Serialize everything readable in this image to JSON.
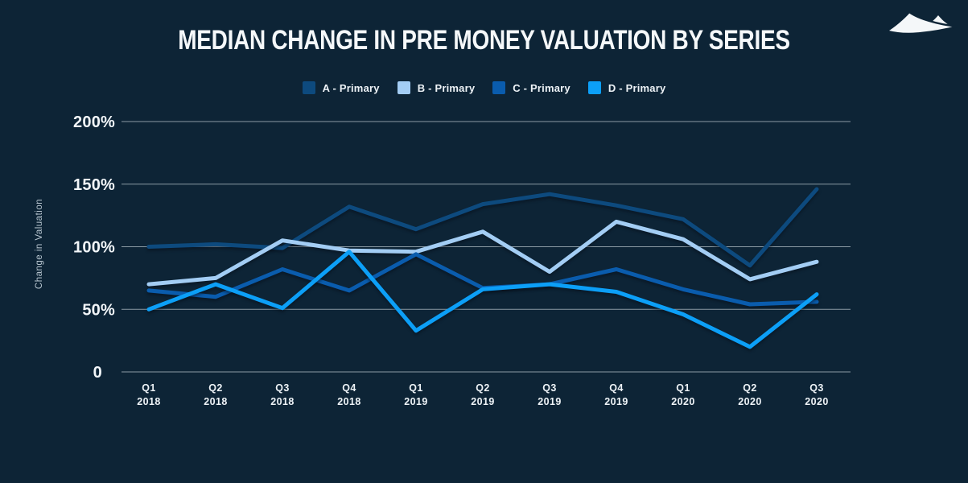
{
  "header": {
    "title": "MEDIAN CHANGE IN PRE MONEY VALUATION BY SERIES",
    "logo_icon": "mountain-dunes-icon"
  },
  "colors": {
    "background": "#0d2436",
    "gridline": "#dfe9ef",
    "title_text": "#f5f8fa",
    "tick_text": "#f2f6f9",
    "axis_title_text": "#b9c7d1",
    "logo": "#f4f7f9"
  },
  "chart_data": {
    "type": "line",
    "title": "MEDIAN CHANGE IN PRE MONEY VALUATION BY SERIES",
    "xlabel": "",
    "ylabel": "Change in Valuation",
    "categories": [
      "Q1 2018",
      "Q2 2018",
      "Q3 2018",
      "Q4 2018",
      "Q1 2019",
      "Q2 2019",
      "Q3 2019",
      "Q4 2019",
      "Q1 2020",
      "Q2 2020",
      "Q3 2020"
    ],
    "series": [
      {
        "name": "A - Primary",
        "color": "#0d4a7e",
        "values": [
          100,
          102,
          99,
          132,
          114,
          134,
          142,
          133,
          122,
          85,
          146
        ]
      },
      {
        "name": "B - Primary",
        "color": "#a3cdf4",
        "values": [
          70,
          75,
          105,
          97,
          96,
          112,
          80,
          120,
          106,
          74,
          88
        ]
      },
      {
        "name": "C - Primary",
        "color": "#0a5cad",
        "values": [
          65,
          60,
          82,
          65,
          94,
          67,
          70,
          82,
          66,
          54,
          56
        ]
      },
      {
        "name": "D - Primary",
        "color": "#0c9ff7",
        "values": [
          50,
          70,
          51,
          96,
          33,
          66,
          70,
          64,
          46,
          20,
          62
        ]
      }
    ],
    "yticks": [
      {
        "value": 0,
        "label": "0"
      },
      {
        "value": 50,
        "label": "50%"
      },
      {
        "value": 100,
        "label": "100%"
      },
      {
        "value": 150,
        "label": "150%"
      },
      {
        "value": 200,
        "label": "200%"
      }
    ],
    "ylim": [
      0,
      200
    ],
    "grid": true,
    "legend_position": "top-center"
  }
}
